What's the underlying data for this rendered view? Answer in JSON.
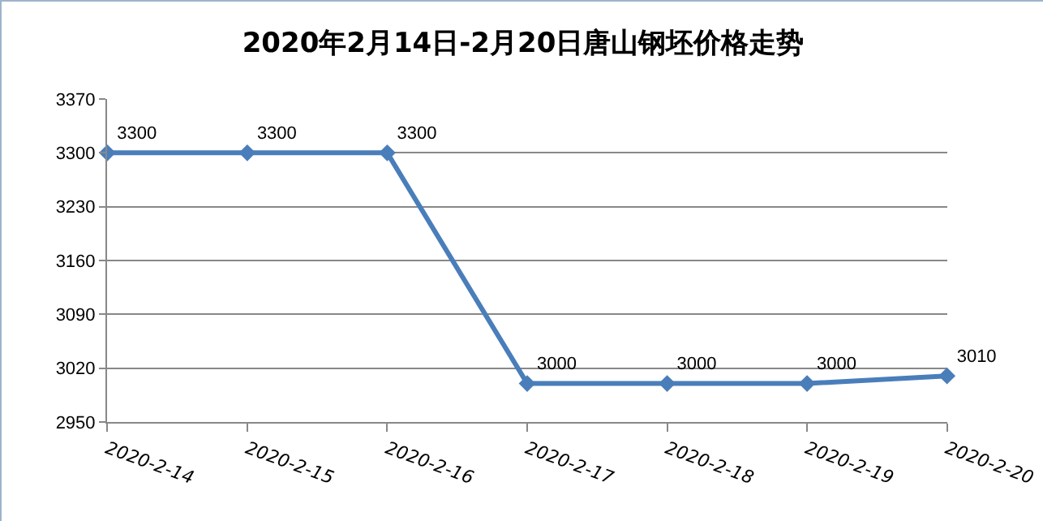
{
  "chart_data": {
    "type": "line",
    "title": "2020年2月14日-2月20日唐山钢坯价格走势",
    "categories": [
      "2020-2-14",
      "2020-2-15",
      "2020-2-16",
      "2020-2-17",
      "2020-2-18",
      "2020-2-19",
      "2020-2-20"
    ],
    "values": [
      3300,
      3300,
      3300,
      3000,
      3000,
      3000,
      3010
    ],
    "color": "#4a7ebb",
    "ylim": [
      2950,
      3370
    ],
    "yticks": [
      2950,
      3020,
      3090,
      3160,
      3230,
      3300,
      3370
    ],
    "grid": "y",
    "marker": "diamond",
    "line_style": "solid",
    "data_labels": true
  }
}
